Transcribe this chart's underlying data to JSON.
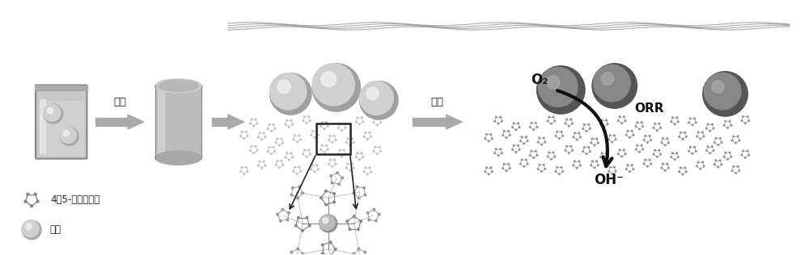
{
  "background_color": "#ffffff",
  "label_shuire": "水热",
  "label_shaoshao": "煅烧",
  "label_45": "4，5-二氰基咪唑",
  "label_tieyuan": "铁盐",
  "label_O2": "O₂",
  "label_ORR": "ORR",
  "label_OH": "OH⁻",
  "fig_width": 10.0,
  "fig_height": 3.16,
  "arrow_gray": "#aaaaaa",
  "sphere_base": "#c8c8c8",
  "sphere_dark": "#909090",
  "sphere_highlight": "#e8e8e8",
  "dark_sphere_base": "#888888",
  "dark_sphere_dark": "#555555",
  "mol_color": "#aaaaaa",
  "mol_color2": "#888888",
  "sheet_color": "#999999",
  "sheet_face": "#cccccc"
}
